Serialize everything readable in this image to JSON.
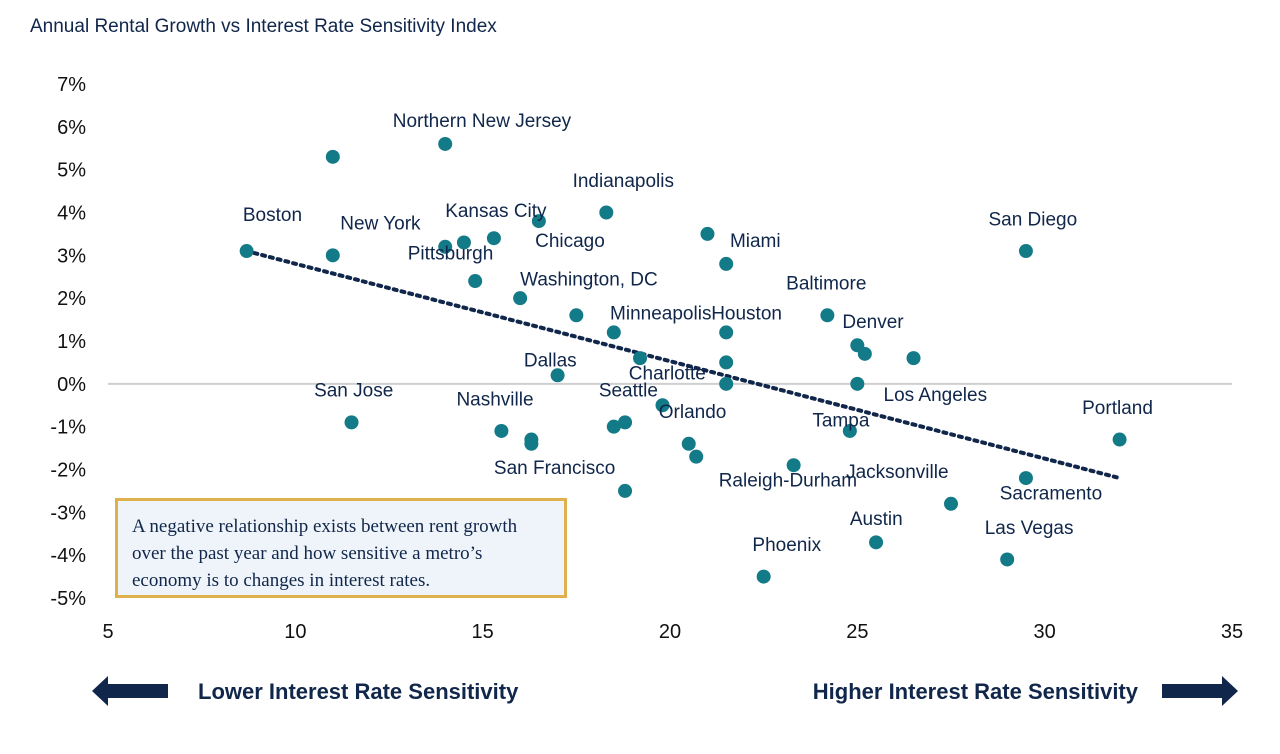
{
  "chart_data": {
    "type": "scatter",
    "title": "Annual Rental Growth vs Interest Rate Sensitivity Index",
    "xlim": [
      5,
      35
    ],
    "ylim": [
      -5,
      7
    ],
    "x_ticks": [
      "5",
      "10",
      "15",
      "20",
      "25",
      "30",
      "35"
    ],
    "y_ticks": [
      "7%",
      "6%",
      "5%",
      "4%",
      "3%",
      "2%",
      "1%",
      "0%",
      "-1%",
      "-2%",
      "-3%",
      "-4%",
      "-5%"
    ],
    "grid": false,
    "colors": {
      "point": "#137a87",
      "trend": "#10264a",
      "text": "#10264a",
      "note_border": "#e0b04c",
      "note_bg": "#eef4f9",
      "arrow": "#10264a"
    },
    "points": [
      {
        "x": 8.7,
        "y": 3.1
      },
      {
        "x": 11.0,
        "y": 5.3
      },
      {
        "x": 11.0,
        "y": 3.0
      },
      {
        "x": 11.5,
        "y": -0.9
      },
      {
        "x": 14.0,
        "y": 5.6
      },
      {
        "x": 14.0,
        "y": 3.2
      },
      {
        "x": 14.5,
        "y": 3.3
      },
      {
        "x": 14.8,
        "y": 2.4
      },
      {
        "x": 15.3,
        "y": 3.4
      },
      {
        "x": 15.5,
        "y": -1.1
      },
      {
        "x": 16.0,
        "y": 2.0
      },
      {
        "x": 16.3,
        "y": -1.3
      },
      {
        "x": 16.3,
        "y": -1.4
      },
      {
        "x": 16.5,
        "y": 3.8
      },
      {
        "x": 17.0,
        "y": 0.2
      },
      {
        "x": 17.5,
        "y": 1.6
      },
      {
        "x": 18.3,
        "y": 4.0
      },
      {
        "x": 18.5,
        "y": 1.2
      },
      {
        "x": 18.5,
        "y": -1.0
      },
      {
        "x": 18.8,
        "y": -0.9
      },
      {
        "x": 18.8,
        "y": -2.5
      },
      {
        "x": 19.2,
        "y": 0.6
      },
      {
        "x": 19.8,
        "y": -0.5
      },
      {
        "x": 20.5,
        "y": -1.4
      },
      {
        "x": 20.7,
        "y": -1.7
      },
      {
        "x": 21.0,
        "y": 3.5
      },
      {
        "x": 21.5,
        "y": 2.8
      },
      {
        "x": 21.5,
        "y": 1.2
      },
      {
        "x": 21.5,
        "y": 0.5
      },
      {
        "x": 21.5,
        "y": 0.0
      },
      {
        "x": 22.5,
        "y": -4.5
      },
      {
        "x": 23.3,
        "y": -1.9
      },
      {
        "x": 24.2,
        "y": 1.6
      },
      {
        "x": 24.8,
        "y": -1.1
      },
      {
        "x": 25.0,
        "y": 0.9
      },
      {
        "x": 25.2,
        "y": 0.7
      },
      {
        "x": 25.0,
        "y": 0.0
      },
      {
        "x": 25.5,
        "y": -3.7
      },
      {
        "x": 26.5,
        "y": 0.6
      },
      {
        "x": 27.5,
        "y": -2.8
      },
      {
        "x": 29.0,
        "y": -4.1
      },
      {
        "x": 29.5,
        "y": 3.1
      },
      {
        "x": 29.5,
        "y": -2.2
      },
      {
        "x": 32.0,
        "y": -1.3
      }
    ],
    "labels": [
      {
        "text": "Northern New Jersey",
        "x": 12.6,
        "y": 6.0
      },
      {
        "text": "Boston",
        "x": 8.6,
        "y": 3.8
      },
      {
        "text": "New York",
        "x": 11.2,
        "y": 3.6
      },
      {
        "text": "Kansas City",
        "x": 14.0,
        "y": 3.9
      },
      {
        "text": "Indianapolis",
        "x": 17.4,
        "y": 4.6
      },
      {
        "text": "Chicago",
        "x": 16.4,
        "y": 3.2
      },
      {
        "text": "Pittsburgh",
        "x": 13.0,
        "y": 2.9
      },
      {
        "text": "Miami",
        "x": 21.6,
        "y": 3.2
      },
      {
        "text": "San Diego",
        "x": 28.5,
        "y": 3.7
      },
      {
        "text": "Washington, DC",
        "x": 16.0,
        "y": 2.3
      },
      {
        "text": "Baltimore",
        "x": 23.1,
        "y": 2.2
      },
      {
        "text": "Minneapolis",
        "x": 18.4,
        "y": 1.5
      },
      {
        "text": "Houston",
        "x": 21.1,
        "y": 1.5
      },
      {
        "text": "Denver",
        "x": 24.6,
        "y": 1.3
      },
      {
        "text": "Dallas",
        "x": 16.1,
        "y": 0.4
      },
      {
        "text": "Charlotte",
        "x": 18.9,
        "y": 0.1
      },
      {
        "text": "San Jose",
        "x": 10.5,
        "y": -0.3
      },
      {
        "text": "Seattle",
        "x": 18.1,
        "y": -0.3
      },
      {
        "text": "Los Angeles",
        "x": 25.7,
        "y": -0.4
      },
      {
        "text": "Nashville",
        "x": 14.3,
        "y": -0.5
      },
      {
        "text": "Portland",
        "x": 31.0,
        "y": -0.7
      },
      {
        "text": "Orlando",
        "x": 19.7,
        "y": -0.8
      },
      {
        "text": "Tampa",
        "x": 23.8,
        "y": -1.0
      },
      {
        "text": "San Francisco",
        "x": 15.3,
        "y": -2.1
      },
      {
        "text": "Jacksonville",
        "x": 24.7,
        "y": -2.2
      },
      {
        "text": "Raleigh-Durham",
        "x": 21.3,
        "y": -2.4
      },
      {
        "text": "Sacramento",
        "x": 28.8,
        "y": -2.7
      },
      {
        "text": "Austin",
        "x": 24.8,
        "y": -3.3
      },
      {
        "text": "Las Vegas",
        "x": 28.4,
        "y": -3.5
      },
      {
        "text": "Phoenix",
        "x": 22.2,
        "y": -3.9
      }
    ],
    "trendline": {
      "x": [
        8.7,
        32.0
      ],
      "y": [
        3.1,
        -2.2
      ]
    },
    "annotation": "A negative relationship exists between rent growth over the past year and how sensitive a metro’s economy is to changes in interest rates.",
    "left_caption": "Lower Interest Rate Sensitivity",
    "right_caption": "Higher Interest Rate Sensitivity"
  }
}
